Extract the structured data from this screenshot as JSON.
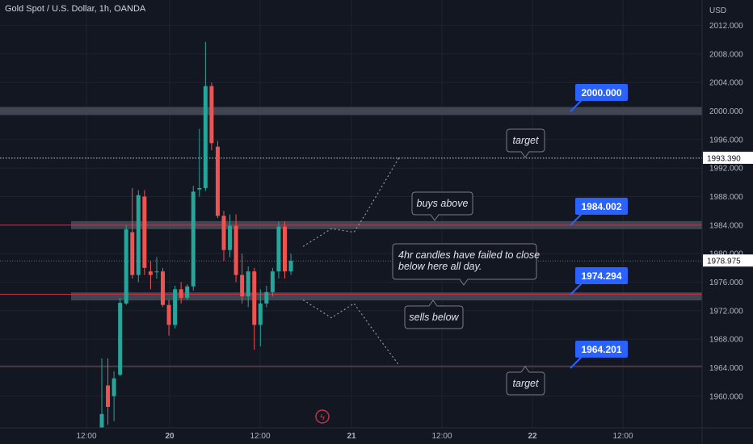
{
  "header": {
    "title": "Gold Spot / U.S. Dollar, 1h, OANDA"
  },
  "colors": {
    "background": "#131722",
    "up": "#26a69a",
    "down": "#ef5350",
    "grid": "#1f2330",
    "axis_text": "#b2b5be",
    "zone": "#4a4e59",
    "red_line": "#c2334a",
    "dotted": "#9598a1",
    "badge": "#2962ff",
    "callout_border": "#787b86"
  },
  "chart_data": {
    "type": "candlestick",
    "symbol": "XAUUSD",
    "timeframe": "1h",
    "y_axis": {
      "unit_label": "USD",
      "range": [
        1956.5,
        2014.5
      ],
      "ticks": [
        "2012.000",
        "2008.000",
        "2004.000",
        "2000.000",
        "1996.000",
        "1992.000",
        "1988.000",
        "1984.000",
        "1980.000",
        "1976.000",
        "1972.000",
        "1968.000",
        "1964.000",
        "1960.000"
      ]
    },
    "x_axis": {
      "ticks": [
        "12:00",
        "20",
        "12:00",
        "21",
        "12:00",
        "22",
        "12:00"
      ]
    },
    "grid": true,
    "candles": [
      {
        "o": 1950.0,
        "h": 1965.3,
        "l": 1948.0,
        "c": 1957.5
      },
      {
        "o": 1961.5,
        "h": 1965.3,
        "l": 1956.0,
        "c": 1958.5
      },
      {
        "o": 1960.0,
        "h": 1963.5,
        "l": 1956.5,
        "c": 1962.5
      },
      {
        "o": 1963.0,
        "h": 1973.8,
        "l": 1962.8,
        "c": 1973.1
      },
      {
        "o": 1973.0,
        "h": 1984.0,
        "l": 1972.8,
        "c": 1983.4
      },
      {
        "o": 1983.0,
        "h": 1989.2,
        "l": 1976.5,
        "c": 1977.0
      },
      {
        "o": 1977.0,
        "h": 1988.9,
        "l": 1976.0,
        "c": 1988.2
      },
      {
        "o": 1988.0,
        "h": 1988.9,
        "l": 1977.0,
        "c": 1978.0
      },
      {
        "o": 1977.5,
        "h": 1979.0,
        "l": 1975.0,
        "c": 1977.0
      },
      {
        "o": 1977.5,
        "h": 1979.5,
        "l": 1976.5,
        "c": 1977.5
      },
      {
        "o": 1977.5,
        "h": 1978.0,
        "l": 1972.5,
        "c": 1972.8
      },
      {
        "o": 1972.8,
        "h": 1973.5,
        "l": 1968.5,
        "c": 1970.0
      },
      {
        "o": 1970.0,
        "h": 1975.5,
        "l": 1969.5,
        "c": 1975.0
      },
      {
        "o": 1975.0,
        "h": 1976.0,
        "l": 1973.0,
        "c": 1973.8
      },
      {
        "o": 1973.8,
        "h": 1975.7,
        "l": 1973.5,
        "c": 1975.4
      },
      {
        "o": 1975.4,
        "h": 1989.5,
        "l": 1974.8,
        "c": 1988.7
      },
      {
        "o": 1989.0,
        "h": 1997.5,
        "l": 1988.0,
        "c": 1989.2
      },
      {
        "o": 1989.2,
        "h": 2009.7,
        "l": 1988.8,
        "c": 2003.5
      },
      {
        "o": 2003.5,
        "h": 2004.0,
        "l": 1994.5,
        "c": 1995.5
      },
      {
        "o": 1995.0,
        "h": 1995.8,
        "l": 1985.0,
        "c": 1985.3
      },
      {
        "o": 1985.3,
        "h": 1986.0,
        "l": 1979.0,
        "c": 1980.5
      },
      {
        "o": 1980.5,
        "h": 1985.5,
        "l": 1979.5,
        "c": 1983.9
      },
      {
        "o": 1983.9,
        "h": 1985.5,
        "l": 1976.0,
        "c": 1977.0
      },
      {
        "o": 1977.0,
        "h": 1980.0,
        "l": 1973.0,
        "c": 1974.0
      },
      {
        "o": 1974.0,
        "h": 1978.2,
        "l": 1972.5,
        "c": 1977.5
      },
      {
        "o": 1977.5,
        "h": 1978.0,
        "l": 1966.5,
        "c": 1970.0
      },
      {
        "o": 1970.0,
        "h": 1975.0,
        "l": 1967.0,
        "c": 1973.0
      },
      {
        "o": 1973.0,
        "h": 1975.5,
        "l": 1972.5,
        "c": 1974.6
      },
      {
        "o": 1974.6,
        "h": 1978.0,
        "l": 1974.0,
        "c": 1977.5
      },
      {
        "o": 1977.5,
        "h": 1984.5,
        "l": 1976.5,
        "c": 1983.8
      },
      {
        "o": 1983.8,
        "h": 1984.5,
        "l": 1976.5,
        "c": 1977.5
      },
      {
        "o": 1977.5,
        "h": 1980.0,
        "l": 1977.0,
        "c": 1979.0
      }
    ],
    "zones": [
      {
        "price": 2000.0,
        "to": "axis"
      },
      {
        "price": 1984.0,
        "to": "axis"
      },
      {
        "price": 1974.0,
        "to": "axis"
      }
    ],
    "horizontal_lines": [
      {
        "price": 1984.002,
        "color": "red"
      },
      {
        "price": 1974.294,
        "color": "red"
      },
      {
        "price": 1964.201,
        "color": "red"
      },
      {
        "price": 1993.39,
        "color": "white",
        "style": "dotted"
      }
    ],
    "price_badges": [
      "2000.000",
      "1984.002",
      "1974.294",
      "1964.201"
    ],
    "axis_labels": [
      {
        "text": "1993.390",
        "price": 1993.39
      },
      {
        "text": "1978.975",
        "price": 1978.975
      }
    ],
    "projection_up": [
      [
        1979.0,
        1981.0
      ],
      [
        1981.5,
        1983.5
      ],
      [
        1983.5,
        1983.0
      ],
      [
        1984.5,
        1985.5
      ],
      [
        1986.0,
        1989.5
      ],
      [
        1987.5,
        1993.5
      ]
    ],
    "projection_down": [
      [
        1979.0,
        1973.5
      ],
      [
        1981.5,
        1971.0
      ],
      [
        1983.5,
        1973.0
      ],
      [
        1986.0,
        1967.5
      ],
      [
        1987.5,
        1964.3
      ]
    ],
    "annotations": [
      {
        "text": [
          "target"
        ]
      },
      {
        "text": [
          "buys above"
        ]
      },
      {
        "text": [
          "4hr candles have failed to close",
          "below here all day."
        ]
      },
      {
        "text": [
          "sells below"
        ]
      },
      {
        "text": [
          "target"
        ]
      }
    ],
    "watermark": "ϟ"
  }
}
